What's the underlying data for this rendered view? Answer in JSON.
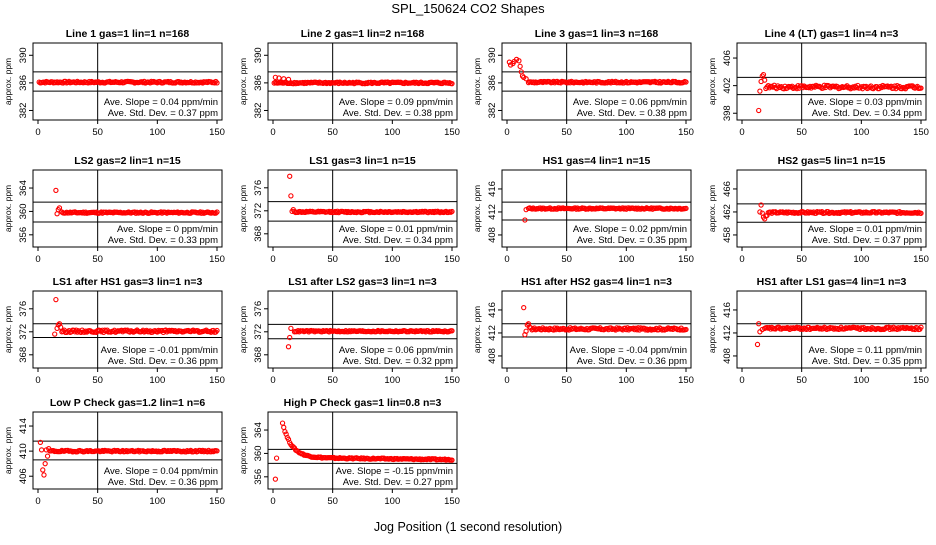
{
  "figure": {
    "title": "SPL_150624  CO2 Shapes",
    "xlabel": "Jog Position (1 second resolution)",
    "point_color": "#ff0000",
    "line_color": "#000000"
  },
  "chart_data": [
    {
      "type": "scatter",
      "title": "Line 1 gas=1 lin=1 n=168",
      "ylabel": "approx. ppm",
      "xlim": [
        0,
        150
      ],
      "xticks": [
        0,
        50,
        100,
        150
      ],
      "ylim": [
        381.2,
        391.2
      ],
      "yticks": [
        382,
        386,
        390
      ],
      "hlines": [
        387.6,
        384.8
      ],
      "vline": 50,
      "start_x": 1,
      "level": 386.1,
      "noise": 0.12,
      "initial": [],
      "decay": null,
      "annotation": {
        "slope": "Ave. Slope = 0.04  ppm/min",
        "std": "Ave. Std. Dev. = 0.37  ppm"
      }
    },
    {
      "type": "scatter",
      "title": "Line 2 gas=1 lin=2 n=168",
      "ylabel": "approx. ppm",
      "xlim": [
        0,
        150
      ],
      "xticks": [
        0,
        50,
        100,
        150
      ],
      "ylim": [
        381.2,
        391.2
      ],
      "yticks": [
        382,
        386,
        390
      ],
      "hlines": [
        387.6,
        384.8
      ],
      "vline": 50,
      "start_x": 1,
      "level": 386.0,
      "noise": 0.12,
      "initial": [
        [
          2,
          386.8
        ],
        [
          5,
          386.7
        ],
        [
          9,
          386.6
        ],
        [
          13,
          386.5
        ]
      ],
      "decay": null,
      "annotation": {
        "slope": "Ave. Slope = 0.09  ppm/min",
        "std": "Ave. Std. Dev. = 0.38  ppm"
      }
    },
    {
      "type": "scatter",
      "title": "Line 3 gas=1 lin=3 n=168",
      "ylabel": "approx. ppm",
      "xlim": [
        0,
        150
      ],
      "xticks": [
        0,
        50,
        100,
        150
      ],
      "ylim": [
        381.2,
        391.2
      ],
      "yticks": [
        382,
        386,
        390
      ],
      "hlines": [
        387.6,
        384.8
      ],
      "vline": 50,
      "start_x": 18,
      "level": 386.1,
      "noise": 0.12,
      "initial": [
        [
          2,
          389.0
        ],
        [
          3,
          388.6
        ],
        [
          5,
          388.8
        ],
        [
          6,
          389.1
        ],
        [
          8,
          389.4
        ],
        [
          10,
          389.2
        ],
        [
          11,
          388.4
        ],
        [
          12,
          387.6
        ],
        [
          13,
          387.0
        ],
        [
          14,
          386.8
        ],
        [
          16,
          386.6
        ]
      ],
      "decay": null,
      "annotation": {
        "slope": "Ave. Slope = 0.06  ppm/min",
        "std": "Ave. Std. Dev. = 0.38  ppm"
      }
    },
    {
      "type": "scatter",
      "title": "Line 4 (LT) gas=1 lin=4 n=3",
      "ylabel": "approx. ppm",
      "xlim": [
        0,
        150
      ],
      "xticks": [
        0,
        50,
        100,
        150
      ],
      "ylim": [
        397.6,
        407.6
      ],
      "yticks": [
        398,
        402,
        406
      ],
      "hlines": [
        403.2,
        400.7
      ],
      "vline": 50,
      "start_x": 20,
      "level": 401.8,
      "noise": 0.25,
      "initial": [
        [
          14,
          398.4
        ],
        [
          15,
          401.2
        ],
        [
          16,
          402.6
        ],
        [
          17,
          403.4
        ],
        [
          18,
          403.6
        ],
        [
          19,
          402.8
        ]
      ],
      "decay": null,
      "annotation": {
        "slope": "Ave. Slope = 0.03  ppm/min",
        "std": "Ave. Std. Dev. = 0.34  ppm"
      }
    },
    {
      "type": "scatter",
      "title": "LS2 gas=2 lin=1 n=15",
      "ylabel": "approx. ppm",
      "xlim": [
        0,
        150
      ],
      "xticks": [
        0,
        50,
        100,
        150
      ],
      "ylim": [
        354.6,
        366.4
      ],
      "yticks": [
        356,
        360,
        364
      ],
      "hlines": [
        361.6,
        358.2
      ],
      "vline": 50,
      "start_x": 20,
      "level": 359.8,
      "noise": 0.12,
      "initial": [
        [
          15,
          363.6
        ],
        [
          16,
          359.6
        ],
        [
          17,
          360.3
        ],
        [
          18,
          360.6
        ]
      ],
      "decay": null,
      "annotation": {
        "slope": "Ave. Slope = 0  ppm/min",
        "std": "Ave. Std. Dev. = 0.33  ppm"
      }
    },
    {
      "type": "scatter",
      "title": "LS1 gas=3 lin=1 n=15",
      "ylabel": "approx. ppm",
      "xlim": [
        0,
        150
      ],
      "xticks": [
        0,
        50,
        100,
        150
      ],
      "ylim": [
        366.4,
        378.4
      ],
      "yticks": [
        368,
        372,
        376
      ],
      "hlines": [
        373.6,
        370.2
      ],
      "vline": 50,
      "start_x": 18,
      "level": 371.8,
      "noise": 0.12,
      "initial": [
        [
          14,
          378.0
        ],
        [
          15,
          374.6
        ],
        [
          16,
          371.9
        ],
        [
          17,
          372.2
        ]
      ],
      "decay": null,
      "annotation": {
        "slope": "Ave. Slope = 0.01  ppm/min",
        "std": "Ave. Std. Dev. = 0.34  ppm"
      }
    },
    {
      "type": "scatter",
      "title": "HS1 gas=4 lin=1 n=15",
      "ylabel": "approx. ppm",
      "xlim": [
        0,
        150
      ],
      "xticks": [
        0,
        50,
        100,
        150
      ],
      "ylim": [
        406.6,
        418.6
      ],
      "yticks": [
        408,
        412,
        416
      ],
      "hlines": [
        413.7,
        410.6
      ],
      "vline": 50,
      "start_x": 18,
      "level": 412.6,
      "noise": 0.12,
      "initial": [
        [
          15,
          410.6
        ],
        [
          16,
          412.4
        ]
      ],
      "decay": null,
      "annotation": {
        "slope": "Ave. Slope = 0.02  ppm/min",
        "std": "Ave. Std. Dev. = 0.35  ppm"
      }
    },
    {
      "type": "scatter",
      "title": "HS2 gas=5 lin=1 n=15",
      "ylabel": "approx. ppm",
      "xlim": [
        0,
        150
      ],
      "xticks": [
        0,
        50,
        100,
        150
      ],
      "ylim": [
        456.6,
        468.6
      ],
      "yticks": [
        458,
        462,
        466
      ],
      "hlines": [
        463.4,
        460.2
      ],
      "vline": 50,
      "start_x": 22,
      "level": 461.9,
      "noise": 0.15,
      "initial": [
        [
          15,
          462.0
        ],
        [
          16,
          463.2
        ],
        [
          17,
          461.8
        ],
        [
          18,
          461.1
        ],
        [
          19,
          460.8
        ],
        [
          20,
          461.3
        ],
        [
          21,
          461.4
        ]
      ],
      "decay": null,
      "annotation": {
        "slope": "Ave. Slope = 0.01  ppm/min",
        "std": "Ave. Std. Dev. = 0.37  ppm"
      }
    },
    {
      "type": "scatter",
      "title": "LS1 after HS1 gas=3 lin=1 n=3",
      "ylabel": "approx. ppm",
      "xlim": [
        0,
        150
      ],
      "xticks": [
        0,
        50,
        100,
        150
      ],
      "ylim": [
        366.4,
        378.4
      ],
      "yticks": [
        368,
        372,
        376
      ],
      "hlines": [
        373.4,
        371.0
      ],
      "vline": 50,
      "start_x": 20,
      "level": 372.1,
      "noise": 0.2,
      "initial": [
        [
          14,
          371.6
        ],
        [
          15,
          377.6
        ],
        [
          16,
          372.6
        ],
        [
          17,
          373.2
        ],
        [
          18,
          373.4
        ],
        [
          19,
          372.8
        ]
      ],
      "decay": null,
      "annotation": {
        "slope": "Ave. Slope = -0.01  ppm/min",
        "std": "Ave. Std. Dev. = 0.36  ppm"
      }
    },
    {
      "type": "scatter",
      "title": "LS1 after LS2 gas=3 lin=1 n=3",
      "ylabel": "approx. ppm",
      "xlim": [
        0,
        150
      ],
      "xticks": [
        0,
        50,
        100,
        150
      ],
      "ylim": [
        366.4,
        378.4
      ],
      "yticks": [
        368,
        372,
        376
      ],
      "hlines": [
        373.3,
        370.8
      ],
      "vline": 50,
      "start_x": 18,
      "level": 372.1,
      "noise": 0.12,
      "initial": [
        [
          13,
          369.4
        ],
        [
          14,
          371.0
        ],
        [
          15,
          372.6
        ]
      ],
      "decay": null,
      "annotation": {
        "slope": "Ave. Slope = 0.06  ppm/min",
        "std": "Ave. Std. Dev. = 0.32  ppm"
      }
    },
    {
      "type": "scatter",
      "title": "HS1 after HS2 gas=4 lin=1 n=3",
      "ylabel": "approx. ppm",
      "xlim": [
        0,
        150
      ],
      "xticks": [
        0,
        50,
        100,
        150
      ],
      "ylim": [
        406.6,
        418.6
      ],
      "yticks": [
        408,
        412,
        416
      ],
      "hlines": [
        413.6,
        411.3
      ],
      "vline": 50,
      "start_x": 20,
      "level": 412.7,
      "noise": 0.2,
      "initial": [
        [
          14,
          416.4
        ],
        [
          15,
          411.7
        ],
        [
          16,
          412.3
        ],
        [
          17,
          413.4
        ],
        [
          18,
          413.6
        ],
        [
          19,
          413.0
        ]
      ],
      "decay": null,
      "annotation": {
        "slope": "Ave. Slope = -0.04  ppm/min",
        "std": "Ave. Std. Dev. = 0.36  ppm"
      }
    },
    {
      "type": "scatter",
      "title": "HS1 after LS1 gas=4 lin=1 n=3",
      "ylabel": "approx. ppm",
      "xlim": [
        0,
        150
      ],
      "xticks": [
        0,
        50,
        100,
        150
      ],
      "ylim": [
        406.6,
        418.6
      ],
      "yticks": [
        408,
        412,
        416
      ],
      "hlines": [
        413.6,
        411.4
      ],
      "vline": 50,
      "start_x": 20,
      "level": 412.8,
      "noise": 0.2,
      "initial": [
        [
          13,
          410.0
        ],
        [
          14,
          413.6
        ],
        [
          15,
          412.2
        ],
        [
          17,
          412.6
        ],
        [
          19,
          412.8
        ]
      ],
      "decay": null,
      "annotation": {
        "slope": "Ave. Slope = 0.11  ppm/min",
        "std": "Ave. Std. Dev. = 0.35  ppm"
      }
    },
    {
      "type": "scatter",
      "title": "Low P Check gas=1.2 lin=1 n=6",
      "ylabel": "approx. ppm",
      "xlim": [
        0,
        150
      ],
      "xticks": [
        0,
        50,
        100,
        150
      ],
      "ylim": [
        404.6,
        415.6
      ],
      "yticks": [
        406,
        410,
        414
      ],
      "hlines": [
        411.6,
        408.6
      ],
      "vline": 50,
      "start_x": 10,
      "level": 410.0,
      "noise": 0.12,
      "initial": [
        [
          2,
          411.4
        ],
        [
          3,
          410.2
        ],
        [
          4,
          407.0
        ],
        [
          5,
          406.2
        ],
        [
          6,
          408.0
        ],
        [
          7,
          410.2
        ],
        [
          8,
          409.2
        ],
        [
          9,
          410.4
        ]
      ],
      "decay": null,
      "annotation": {
        "slope": "Ave. Slope = 0.04  ppm/min",
        "std": "Ave. Std. Dev. = 0.36  ppm"
      }
    },
    {
      "type": "scatter",
      "title": "High P Check gas=1 lin=0.8 n=3",
      "ylabel": "approx. ppm",
      "xlim": [
        0,
        150
      ],
      "xticks": [
        0,
        50,
        100,
        150
      ],
      "ylim": [
        354.6,
        366.4
      ],
      "yticks": [
        356,
        360,
        364
      ],
      "hlines": [
        360.7,
        358.3
      ],
      "vline": 50,
      "start_x": 8,
      "level": 359.3,
      "noise": 0.1,
      "initial": [
        [
          2,
          355.6
        ],
        [
          3,
          359.2
        ]
      ],
      "decay": {
        "amp": 5.9,
        "tau": 7.5,
        "end": 150
      },
      "annotation": {
        "slope": "Ave. Slope = -0.15  ppm/min",
        "std": "Ave. Std. Dev. = 0.27  ppm"
      }
    }
  ]
}
